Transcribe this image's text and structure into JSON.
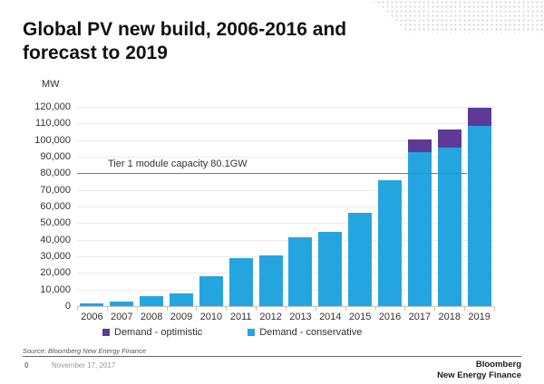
{
  "slide": {
    "title_line1": "Global PV new build, 2006-2016 and",
    "title_line2": "forecast to 2019"
  },
  "chart_data": {
    "type": "bar",
    "stacked": true,
    "title": "Global PV new build, 2006-2016 and forecast to 2019",
    "ylabel": "MW",
    "ylim": [
      0,
      120000
    ],
    "ytick_step": 10000,
    "ytick_labels": [
      "0",
      "10,000",
      "20,000",
      "30,000",
      "40,000",
      "50,000",
      "60,000",
      "70,000",
      "80,000",
      "90,000",
      "100,000",
      "110,000",
      "120,000"
    ],
    "grid": true,
    "legend_position": "bottom",
    "categories": [
      "2006",
      "2007",
      "2008",
      "2009",
      "2010",
      "2011",
      "2012",
      "2013",
      "2014",
      "2015",
      "2016",
      "2017",
      "2018",
      "2019"
    ],
    "series": [
      {
        "name": "Demand - conservative",
        "color": "#25a5df",
        "values": [
          1500,
          2500,
          6000,
          7500,
          18000,
          29000,
          30500,
          41500,
          45000,
          56000,
          76000,
          93000,
          95500,
          108500
        ]
      },
      {
        "name": "Demand - optimistic",
        "color": "#5e3a96",
        "values": [
          0,
          0,
          0,
          0,
          0,
          0,
          0,
          0,
          0,
          0,
          0,
          7500,
          11000,
          11000
        ]
      }
    ],
    "legend_order": [
      "Demand - optimistic",
      "Demand - conservative"
    ],
    "reference_line": {
      "value": 80100,
      "label": "Tier 1 module capacity 80.1GW",
      "color": "#dd5050"
    }
  },
  "footer": {
    "source": "Source: Bloomberg New Energy Finance",
    "page_number": "0",
    "date": "November 17, 2017",
    "logo_line1": "Bloomberg",
    "logo_line2": "New Energy Finance"
  }
}
